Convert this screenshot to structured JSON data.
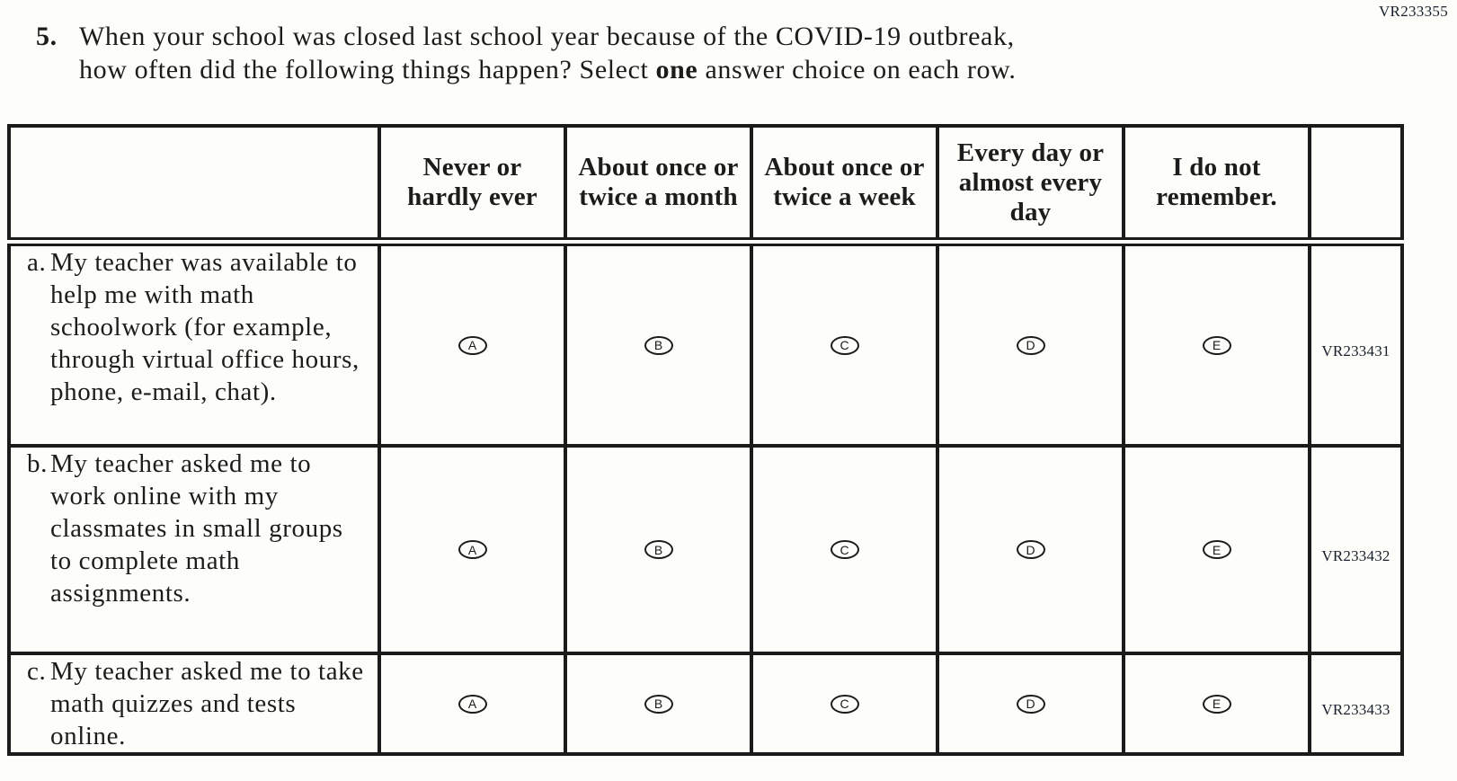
{
  "page": {
    "code_top_right": "VR233355"
  },
  "question": {
    "number": "5.",
    "line1": "When your school was closed last school year because of the COVID-19 outbreak,",
    "line2_pre": "how often did the following things happen? Select ",
    "line2_bold": "one",
    "line2_post": " answer choice on each row."
  },
  "table": {
    "columns": [
      "Never or hardly ever",
      "About once or twice a month",
      "About once or twice a week",
      "Every day or almost every day",
      "I do not remember."
    ],
    "options": [
      "A",
      "B",
      "C",
      "D",
      "E"
    ],
    "rows": [
      {
        "letter": "a.",
        "statement": "My teacher was available to help me with math schoolwork (for example, through virtual office hours, phone, e-mail, chat).",
        "code": "VR233431"
      },
      {
        "letter": "b.",
        "statement": "My teacher asked me to work online with my classmates in small groups to complete math assignments.",
        "code": "VR233432"
      },
      {
        "letter": "c.",
        "statement": "My teacher asked me to take math quizzes and tests online.",
        "code": "VR233433"
      }
    ]
  }
}
